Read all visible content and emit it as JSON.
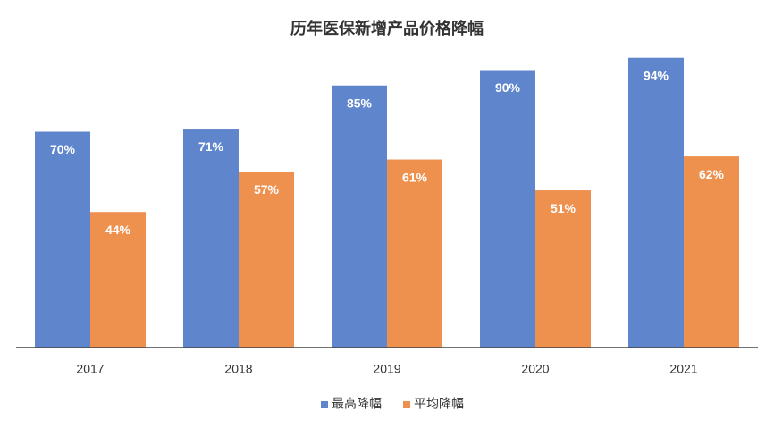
{
  "chart_data": {
    "type": "bar",
    "title": "历年医保新增产品价格降幅",
    "categories": [
      "2017",
      "2018",
      "2019",
      "2020",
      "2021"
    ],
    "series": [
      {
        "name": "最高降幅",
        "color": "#5f86cc",
        "values": [
          70,
          71,
          85,
          90,
          94
        ],
        "value_labels": [
          "70%",
          "71%",
          "85%",
          "90%",
          "94%"
        ]
      },
      {
        "name": "平均降幅",
        "color": "#ee914f",
        "values": [
          44,
          57,
          61,
          51,
          62
        ],
        "value_labels": [
          "44%",
          "57%",
          "61%",
          "51%",
          "62%"
        ]
      }
    ],
    "ylim": [
      0,
      100
    ],
    "legend": "bottom"
  }
}
